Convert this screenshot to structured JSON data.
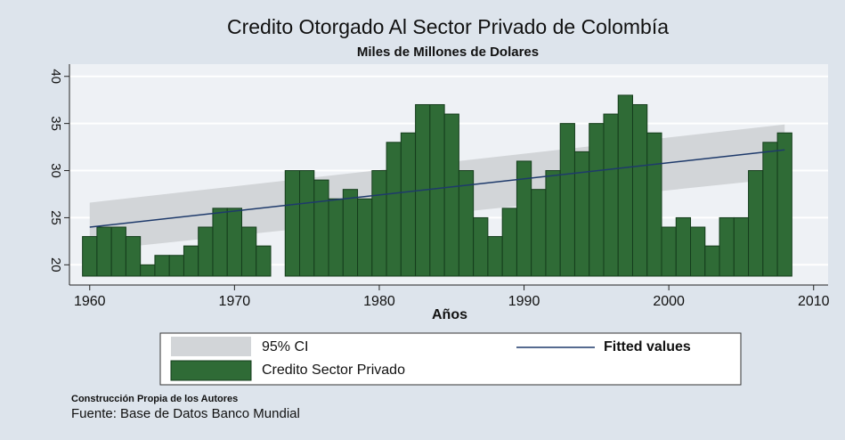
{
  "chart_data": {
    "type": "bar",
    "title": "Credito Otorgado Al Sector Privado de Colombía",
    "subtitle": "Miles de Millones de Dolares",
    "x_label": "Años",
    "x": [
      1960,
      1961,
      1962,
      1963,
      1964,
      1965,
      1966,
      1967,
      1968,
      1969,
      1970,
      1971,
      1972,
      1973,
      1974,
      1975,
      1976,
      1977,
      1978,
      1979,
      1980,
      1981,
      1982,
      1983,
      1984,
      1985,
      1986,
      1987,
      1988,
      1989,
      1990,
      1991,
      1992,
      1993,
      1994,
      1995,
      1996,
      1997,
      1998,
      1999,
      2000,
      2001,
      2002,
      2003,
      2004,
      2005,
      2006,
      2007,
      2008
    ],
    "series": [
      {
        "name": "Credito Sector Privado",
        "color": "#2f6b36",
        "values": [
          23,
          24,
          24,
          23,
          20,
          21,
          21,
          22,
          24,
          26,
          26,
          24,
          22,
          null,
          30,
          30,
          29,
          27,
          28,
          27,
          30,
          33,
          34,
          37,
          37,
          36,
          30,
          25,
          23,
          26,
          31,
          28,
          30,
          35,
          32,
          35,
          36,
          38,
          37,
          34,
          24,
          25,
          24,
          22,
          25,
          25,
          30,
          33,
          34
        ]
      }
    ],
    "fitted": {
      "name": "Fitted values",
      "color": "#1e3a6b",
      "x": [
        1960,
        2008
      ],
      "values": [
        24,
        32.2
      ]
    },
    "ci": {
      "name": "95% CI",
      "color": "#d2d5d8",
      "x": [
        1960,
        2008
      ],
      "lower": [
        21.5,
        29.2
      ],
      "upper": [
        26.6,
        34.9
      ]
    },
    "xlim": [
      1958.6,
      2011
    ],
    "xticks": [
      1960,
      1970,
      1980,
      1990,
      2000,
      2010
    ],
    "ylim": [
      18.8,
      41.3
    ],
    "yticks": [
      20,
      25,
      30,
      35,
      40
    ],
    "grid": true,
    "notes": [
      "Construcción Propia de los Autores",
      "Fuente: Base de Datos Banco Mundial"
    ]
  }
}
